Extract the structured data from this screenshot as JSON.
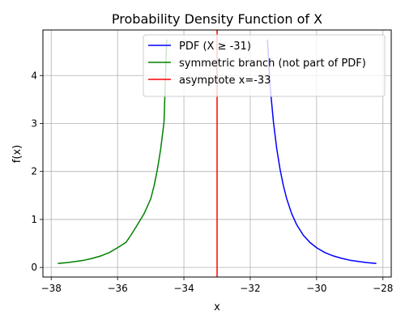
{
  "chart_data": {
    "type": "line",
    "title": "Probability Density Function of X",
    "xlabel": "x",
    "ylabel": "f(x)",
    "xlim": [
      -38.25,
      -27.75
    ],
    "ylim": [
      -0.2,
      4.95
    ],
    "xticks": [
      -38,
      -36,
      -34,
      -32,
      -30,
      -28
    ],
    "yticks": [
      0,
      1,
      2,
      3,
      4
    ],
    "grid": true,
    "legend_position": "top-right",
    "asymptote_x": -33,
    "series": [
      {
        "name": "PDF (X ≥ -31)",
        "color": "#0000ff",
        "x": [
          -31.48,
          -31.4,
          -31.3,
          -31.2,
          -31.1,
          -31.0,
          -30.9,
          -30.75,
          -30.6,
          -30.4,
          -30.2,
          -30.0,
          -29.75,
          -29.5,
          -29.25,
          -29.0,
          -28.75,
          -28.5,
          -28.2
        ],
        "y": [
          4.75,
          3.77,
          3.03,
          2.47,
          2.04,
          1.7,
          1.43,
          1.12,
          0.89,
          0.67,
          0.52,
          0.41,
          0.31,
          0.24,
          0.19,
          0.152,
          0.124,
          0.102,
          0.082
        ]
      },
      {
        "name": "symmetric branch (not part of PDF)",
        "color": "#008000",
        "x": [
          -37.8,
          -37.5,
          -37.25,
          -37.0,
          -36.75,
          -36.5,
          -36.25,
          -36.0,
          -35.75,
          -35.6,
          -35.4,
          -35.2,
          -35.0,
          -34.9,
          -34.8,
          -34.7,
          -34.6,
          -34.52
        ],
        "y": [
          0.082,
          0.102,
          0.124,
          0.152,
          0.19,
          0.24,
          0.31,
          0.41,
          0.52,
          0.67,
          0.89,
          1.12,
          1.43,
          1.7,
          2.04,
          2.47,
          3.03,
          4.75
        ]
      },
      {
        "name": "asymptote x=-33",
        "color": "#ff0000",
        "x": [
          -33,
          -33
        ],
        "y": [
          -0.2,
          4.95
        ]
      }
    ]
  }
}
